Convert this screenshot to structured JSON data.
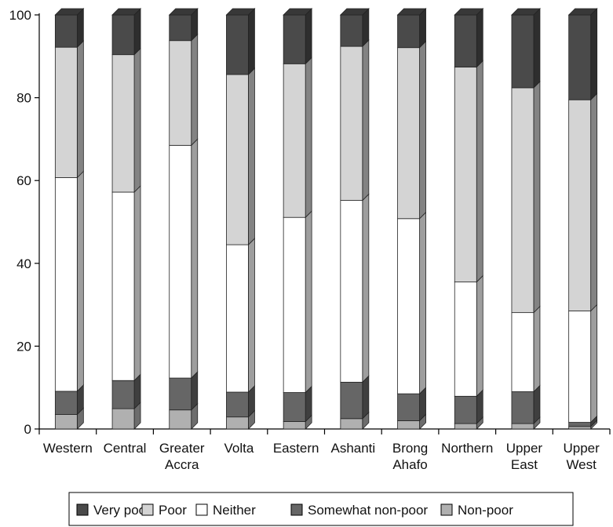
{
  "chart_data": {
    "type": "bar",
    "stacked": true,
    "three_d": true,
    "title": "",
    "xlabel": "",
    "ylabel": "",
    "ylim": [
      0,
      100
    ],
    "yticks": [
      0,
      20,
      40,
      60,
      80,
      100
    ],
    "grid": false,
    "legend_position": "bottom",
    "categories": [
      [
        "Western"
      ],
      [
        "Central"
      ],
      [
        "Greater",
        "Accra"
      ],
      [
        "Volta"
      ],
      [
        "Eastern"
      ],
      [
        "Ashanti"
      ],
      [
        "Brong",
        "Ahafo"
      ],
      [
        "Northern"
      ],
      [
        "Upper",
        "East"
      ],
      [
        "Upper",
        "West"
      ]
    ],
    "series": [
      {
        "name": "Non-poor",
        "values": [
          3.5,
          4.9,
          4.6,
          2.9,
          1.8,
          2.5,
          2.0,
          1.3,
          1.3,
          0.6
        ],
        "color": "#b0b0b0"
      },
      {
        "name": "Somewhat non-poor",
        "values": [
          5.6,
          6.8,
          7.7,
          6.0,
          7.0,
          8.8,
          6.5,
          6.6,
          7.7,
          1.0
        ],
        "color": "#666666"
      },
      {
        "name": "Neither",
        "values": [
          51.6,
          45.5,
          56.2,
          35.6,
          42.3,
          43.9,
          42.3,
          27.6,
          19.1,
          26.9
        ],
        "color": "#ffffff"
      },
      {
        "name": "Poor",
        "values": [
          31.5,
          33.2,
          25.3,
          41.1,
          37.1,
          37.2,
          41.3,
          51.9,
          54.3,
          51.0
        ],
        "color": "#d4d4d4"
      },
      {
        "name": "Very poor",
        "values": [
          7.8,
          9.6,
          6.2,
          14.4,
          11.8,
          7.6,
          7.9,
          12.6,
          17.6,
          20.5
        ],
        "color": "#4a4a4a"
      }
    ],
    "legend_order": [
      "Very poor",
      "Poor",
      "Neither",
      "Somewhat non-poor",
      "Non-poor"
    ]
  }
}
